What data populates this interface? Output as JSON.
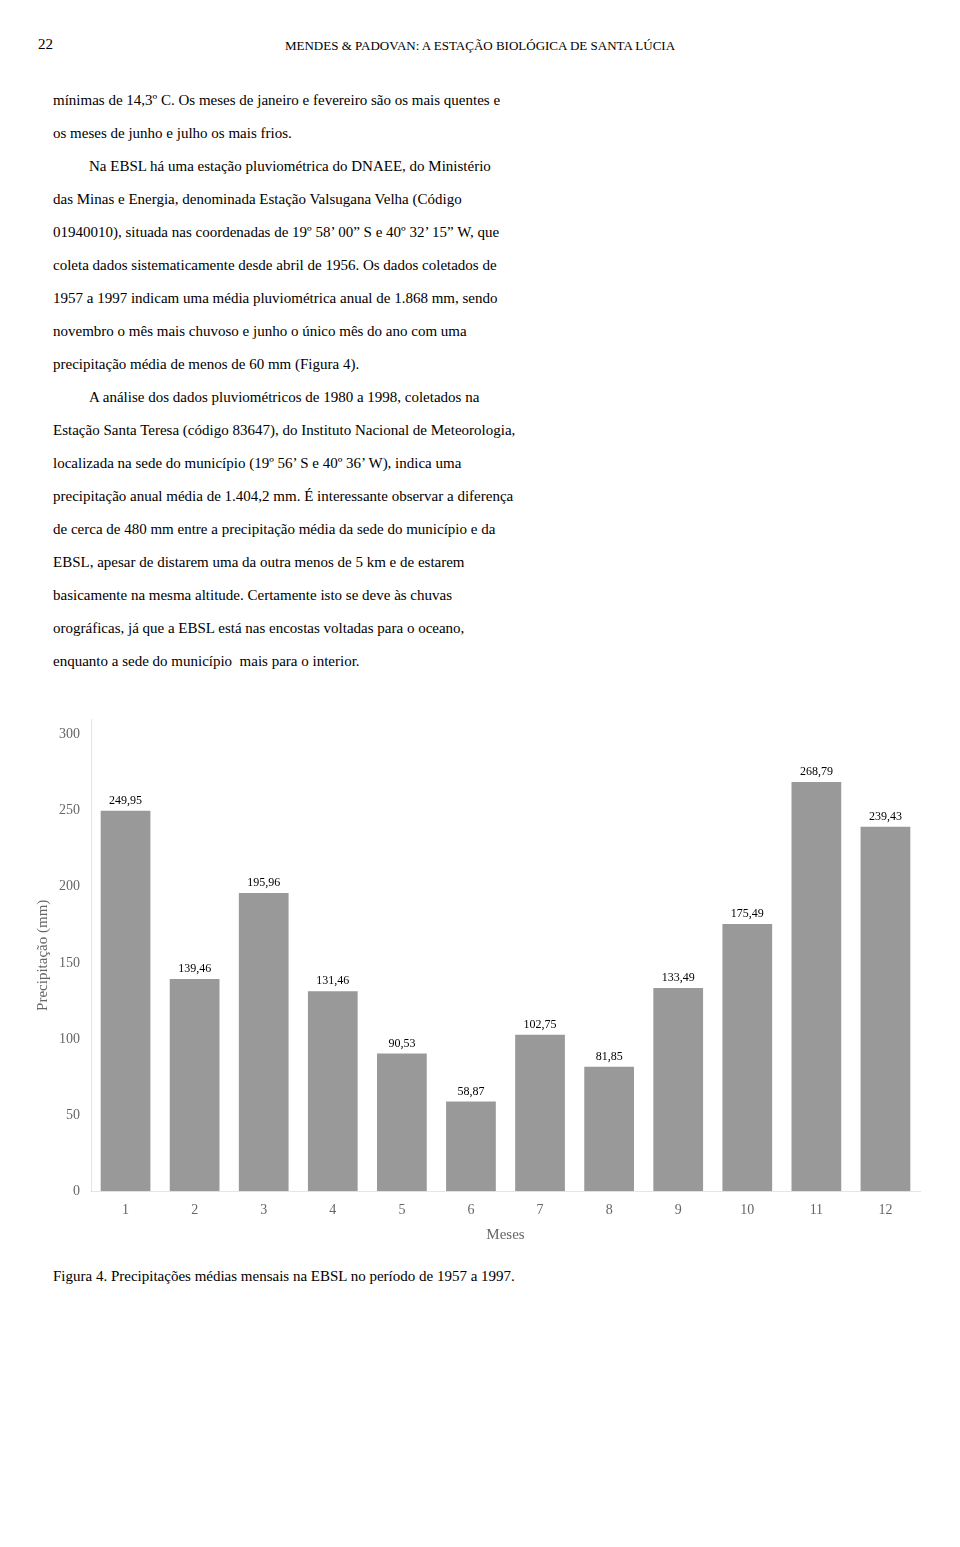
{
  "page": {
    "number": "22",
    "header": "MENDES & PADOVAN: A ESTAÇÃO BIOLÓGICA DE SANTA LÚCIA",
    "text": [
      [
        "mínimas de 14,3º C. Os meses de janeiro e fevereiro são os mais quentes e",
        "os meses de junho e julho os mais frios."
      ],
      [
        "Na EBSL há uma estação pluviométrica do DNAEE, do Ministério",
        "das Minas e Energia, denominada Estação Valsugana Velha (Código",
        "01940010), situada nas coordenadas de 19º 58’ 00” S e 40º 32’ 15” W, que",
        "coleta dados sistematicamente desde abril de 1956. Os dados coletados de",
        "1957 a 1997 indicam uma média pluviométrica anual de 1.868 mm, sendo",
        "novembro o mês mais chuvoso e junho o único mês do ano com uma",
        "precipitação média de menos de 60 mm (Figura 4)."
      ],
      [
        "A análise dos dados pluviométricos de 1980 a 1998, coletados na",
        "Estação Santa Teresa (código 83647), do Instituto Nacional de Meteorologia,",
        "localizada na sede do município (19º 56’ S e 40º 36’ W), indica uma",
        "precipitação anual média de 1.404,2 mm. É interessante observar a diferença",
        "de cerca de 480 mm entre a precipitação média da sede do município e da",
        "EBSL, apesar de distarem uma da outra menos de 5 km e de estarem",
        "basicamente na mesma altitude. Certamente isto se deve às chuvas",
        "orográficas, já que a EBSL está nas encostas voltadas para o oceano,",
        "enquanto a sede do município  mais para o interior."
      ]
    ]
  },
  "chart_data": {
    "type": "bar",
    "title": "Figura 4. Precipitações médias mensais na EBSL no período de 1957 a 1997.",
    "x_label": "Meses",
    "y_label": "Precipitação (mm)",
    "categories": [
      "1",
      "2",
      "3",
      "4",
      "5",
      "6",
      "7",
      "8",
      "9",
      "10",
      "11",
      "12"
    ],
    "values": [
      249.95,
      139.46,
      195.96,
      131.46,
      90.53,
      58.87,
      102.75,
      81.85,
      133.49,
      175.49,
      268.79,
      239.43
    ],
    "value_labels": [
      "249,95",
      "139,46",
      "195,96",
      "131,46",
      "90,53",
      "58,87",
      "102,75",
      "81,85",
      "133,49",
      "175,49",
      "268,79",
      "239,43"
    ],
    "data_labels": true,
    "color": "#999999",
    "ylim": [
      0,
      310
    ],
    "yticks": [
      0,
      50,
      100,
      150,
      200,
      250,
      300
    ],
    "grid": false
  }
}
